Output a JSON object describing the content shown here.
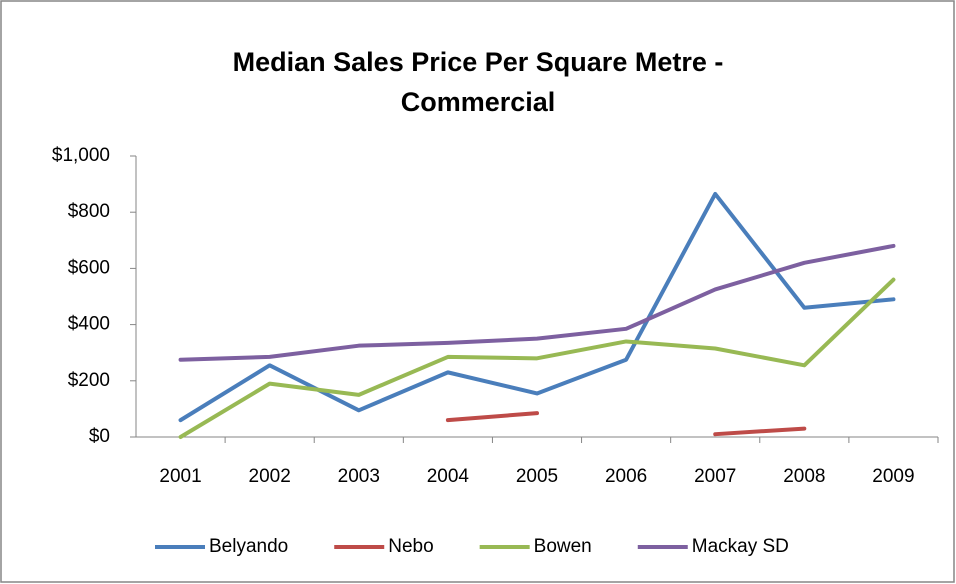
{
  "chart_data": {
    "type": "line",
    "title": "Median Sales Price Per Square Metre - Commercial",
    "categories": [
      "2001",
      "2002",
      "2003",
      "2004",
      "2005",
      "2006",
      "2007",
      "2008",
      "2009"
    ],
    "series": [
      {
        "name": "Belyando",
        "color": "#4a7ebb",
        "values": [
          60,
          255,
          95,
          230,
          155,
          275,
          865,
          460,
          490
        ]
      },
      {
        "name": "Nebo",
        "color": "#be4b48",
        "values": [
          null,
          null,
          null,
          60,
          85,
          null,
          10,
          30,
          null
        ]
      },
      {
        "name": "Bowen",
        "color": "#98b954",
        "values": [
          0,
          190,
          150,
          285,
          280,
          340,
          315,
          255,
          560
        ]
      },
      {
        "name": "Mackay SD",
        "color": "#7d60a0",
        "values": [
          275,
          285,
          325,
          335,
          350,
          385,
          525,
          620,
          680
        ]
      }
    ],
    "ylim": [
      0,
      1000
    ],
    "yticks": [
      {
        "value": 0,
        "label": "$0"
      },
      {
        "value": 200,
        "label": "$200"
      },
      {
        "value": 400,
        "label": "$400"
      },
      {
        "value": 600,
        "label": "$600"
      },
      {
        "value": 800,
        "label": "$800"
      },
      {
        "value": 1000,
        "label": "$1,000"
      }
    ],
    "grid": false,
    "legend": "bottom"
  }
}
